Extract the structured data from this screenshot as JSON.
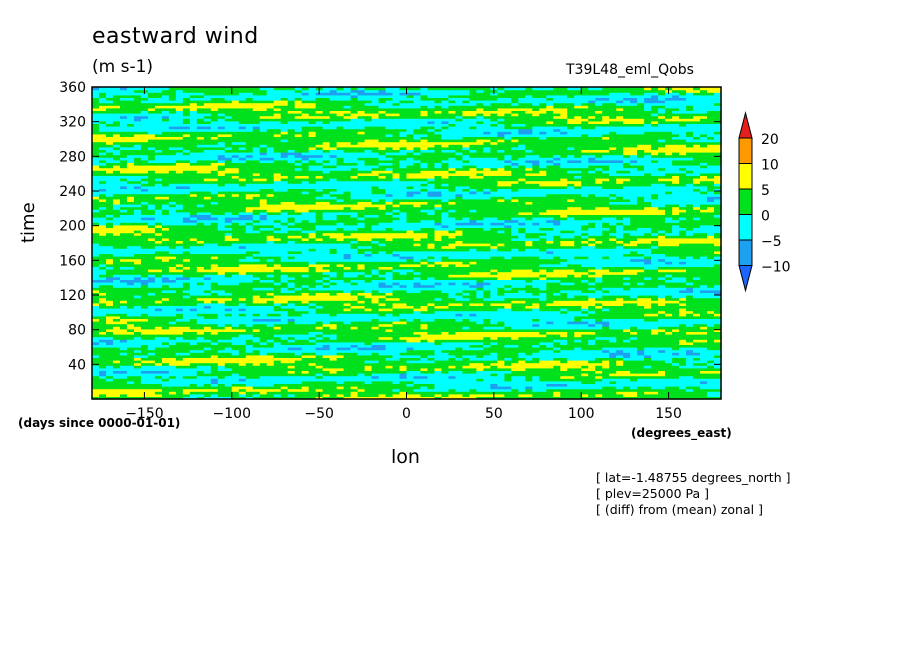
{
  "chart_data": {
    "type": "heatmap",
    "title": "eastward wind",
    "subtitle": "(m s-1)",
    "run_label": "T39L48_eml_Qobs",
    "xlabel": "lon",
    "ylabel": "time",
    "x_units": "(degrees_east)",
    "y_units": "(days since 0000-01-01)",
    "xlim": [
      -180,
      180
    ],
    "ylim": [
      0,
      360
    ],
    "x_ticks": [
      -150,
      -100,
      -50,
      0,
      50,
      100,
      150
    ],
    "y_ticks": [
      40,
      80,
      120,
      160,
      200,
      240,
      280,
      320,
      360
    ],
    "colorbar": {
      "levels": [
        -10,
        -5,
        0,
        5,
        10,
        20
      ],
      "labels": [
        "20",
        "10",
        "5",
        "0",
        "-5",
        "-10"
      ],
      "colors": [
        "#1e64ff",
        "#1ea0f0",
        "#00ffff",
        "#00e11e",
        "#ffff00",
        "#ff9900",
        "#e61e1e"
      ]
    },
    "notes": [
      "[ lat=-1.48755 degrees_north ]",
      "[ plev=25000 Pa ]",
      "[ (diff) from (mean) zonal ]"
    ]
  }
}
